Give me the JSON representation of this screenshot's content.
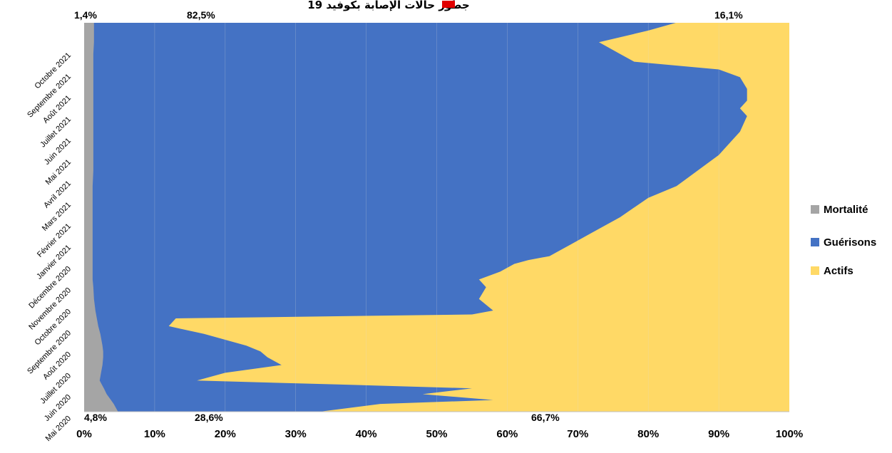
{
  "chart_data": {
    "type": "area",
    "orientation": "horizontal-stacked-100",
    "title": "جطور حالات الإصابة بكوفيد 19",
    "xlabel": "",
    "ylabel": "",
    "xlim": [
      0,
      100
    ],
    "x_ticks": [
      "0%",
      "10%",
      "20%",
      "30%",
      "40%",
      "50%",
      "60%",
      "70%",
      "80%",
      "90%",
      "100%"
    ],
    "y_ticks": [
      "Mai 2020",
      "Juin 2020",
      "Juillet 2020",
      "Août 2020",
      "Septembre 2020",
      "Octobre 2020",
      "Novembre 2020",
      "Décembre 2020",
      "Janvier 2021",
      "Février 2021",
      "Mars 2021",
      "Avril 2021",
      "Mai 2021",
      "Juin 2021",
      "Juillet 2021",
      "Août 2021",
      "Septembre 2021",
      "Octobre 2021"
    ],
    "legend_position": "right",
    "series": [
      {
        "name": "Mortalité",
        "color": "#a5a5a5"
      },
      {
        "name": "Guérisons",
        "color": "#4472c4"
      },
      {
        "name": "Actifs",
        "color": "#ffd966"
      }
    ],
    "t": [
      0,
      0.02,
      0.03,
      0.045,
      0.06,
      0.07,
      0.08,
      0.1,
      0.12,
      0.14,
      0.155,
      0.17,
      0.2,
      0.22,
      0.24,
      0.25,
      0.26,
      0.29,
      0.32,
      0.34,
      0.36,
      0.38,
      0.39,
      0.4,
      0.41,
      0.43,
      0.46,
      0.5,
      0.55,
      0.58,
      0.62,
      0.66,
      0.7,
      0.72,
      0.76,
      0.78,
      0.8,
      0.83,
      0.86,
      0.88,
      0.9,
      0.92,
      0.95,
      0.98,
      1.0
    ],
    "mortality": [
      4.8,
      4.2,
      3.8,
      3.2,
      2.8,
      2.5,
      2.2,
      2.4,
      2.6,
      2.7,
      2.7,
      2.6,
      2.3,
      2.0,
      1.8,
      1.7,
      1.6,
      1.4,
      1.3,
      1.2,
      1.2,
      1.2,
      1.2,
      1.2,
      1.2,
      1.2,
      1.2,
      1.2,
      1.2,
      1.2,
      1.3,
      1.3,
      1.3,
      1.3,
      1.3,
      1.3,
      1.3,
      1.3,
      1.3,
      1.3,
      1.3,
      1.3,
      1.4,
      1.4,
      1.4
    ],
    "cum_mort_recov": [
      33.4,
      42.0,
      58.0,
      48.0,
      55.0,
      36.0,
      16.0,
      20.0,
      28.0,
      26.0,
      25.0,
      23.0,
      17.0,
      12.0,
      13.0,
      55.0,
      58.0,
      56.0,
      57.0,
      56.0,
      59.0,
      61.0,
      63.0,
      66.0,
      67.0,
      69.0,
      72.0,
      76.0,
      80.0,
      84.0,
      87.0,
      90.0,
      92.0,
      93.0,
      94.0,
      93.0,
      94.0,
      94.0,
      93.0,
      90.0,
      78.0,
      76.0,
      73.0,
      80.0,
      83.9
    ]
  },
  "annotations": {
    "bottom_mortality": "4,8%",
    "bottom_recovery": "28,6%",
    "bottom_active": "66,7%",
    "top_mortality": "1,4%",
    "top_recovery": "82,5%",
    "top_active": "16,1%"
  }
}
